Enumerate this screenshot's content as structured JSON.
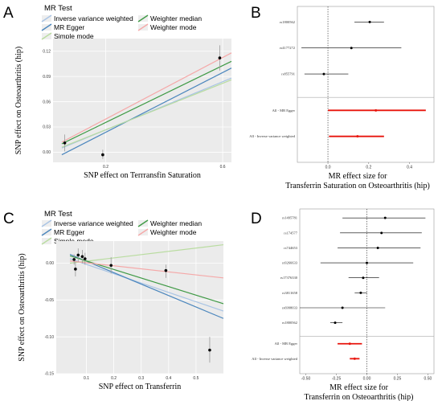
{
  "panels": {
    "A": "A",
    "B": "B",
    "C": "C",
    "D": "D"
  },
  "legend": {
    "title": "MR Test",
    "items": [
      {
        "label": "Inverse variance weighted",
        "color": "#a9c4e4"
      },
      {
        "label": "MR Egger",
        "color": "#4b86bd"
      },
      {
        "label": "Simple mode",
        "color": "#b9dca0"
      },
      {
        "label": "Weighter median",
        "color": "#3f9a45"
      },
      {
        "label": "Weighter mode",
        "color": "#f5a8a8"
      }
    ]
  },
  "chart_data": [
    {
      "id": "A",
      "type": "scatter",
      "xlabel": "SNP effect on Terrransfin Saturation",
      "ylabel": "SNP effect on Osteoarthritis (hip)",
      "xlim": [
        0.02,
        0.63
      ],
      "ylim": [
        -0.012,
        0.135
      ],
      "xticks": [
        {
          "v": 0.2,
          "t": "0.2"
        },
        {
          "v": 0.6,
          "t": "0.6"
        }
      ],
      "yticks": [
        {
          "v": 0.0,
          "t": "0.00"
        },
        {
          "v": 0.03,
          "t": "0.03"
        },
        {
          "v": 0.06,
          "t": "0.06"
        },
        {
          "v": 0.09,
          "t": "0.09"
        },
        {
          "v": 0.12,
          "t": "0.12"
        }
      ],
      "points": [
        {
          "x": 0.06,
          "y": 0.011,
          "lo": 0.001,
          "hi": 0.021
        },
        {
          "x": 0.19,
          "y": -0.003,
          "lo": -0.008,
          "hi": 0.003
        },
        {
          "x": 0.59,
          "y": 0.112,
          "lo": 0.097,
          "hi": 0.127
        }
      ],
      "lines": [
        {
          "name": "Inverse variance weighted",
          "x0": 0.05,
          "y0": 0.005,
          "x1": 0.63,
          "y1": 0.088
        },
        {
          "name": "MR Egger",
          "x0": 0.05,
          "y0": -0.003,
          "x1": 0.63,
          "y1": 0.1
        },
        {
          "name": "Simple mode",
          "x0": 0.05,
          "y0": 0.006,
          "x1": 0.63,
          "y1": 0.086
        },
        {
          "name": "Weighter median",
          "x0": 0.05,
          "y0": 0.01,
          "x1": 0.63,
          "y1": 0.108
        },
        {
          "name": "Weighter mode",
          "x0": 0.05,
          "y0": 0.012,
          "x1": 0.63,
          "y1": 0.118
        }
      ]
    },
    {
      "id": "B",
      "type": "forest",
      "xlabel": "MR effect size for\nTransferrin Saturation on Osteoarthritis (hip)",
      "xlim": [
        -0.15,
        0.52
      ],
      "xticks": [
        {
          "v": 0.0,
          "t": "0.0"
        },
        {
          "v": 0.2,
          "t": "0.2"
        },
        {
          "v": 0.4,
          "t": "0.4"
        }
      ],
      "snps": [
        {
          "label": "rs1800562",
          "est": 0.205,
          "lo": 0.13,
          "hi": 0.275
        },
        {
          "label": "rs4177272",
          "est": 0.115,
          "lo": -0.13,
          "hi": 0.36
        },
        {
          "label": "rs855791",
          "est": -0.02,
          "lo": -0.115,
          "hi": 0.1
        }
      ],
      "summary": [
        {
          "label": "All - MR Egger",
          "est": 0.235,
          "lo": 0.0,
          "hi": 0.48
        },
        {
          "label": "All - Inverse variance weighted",
          "est": 0.145,
          "lo": 0.005,
          "hi": 0.275
        }
      ]
    },
    {
      "id": "C",
      "type": "scatter",
      "xlabel": "SNP effect on Transferrin",
      "ylabel": "SNP effect on Osteoarthritis (hip)",
      "xlim": [
        -0.01,
        0.6
      ],
      "ylim": [
        -0.15,
        0.03
      ],
      "xticks": [
        {
          "v": 0.1,
          "t": "0.1"
        },
        {
          "v": 0.2,
          "t": "0.2"
        },
        {
          "v": 0.3,
          "t": "0.3"
        },
        {
          "v": 0.4,
          "t": "0.4"
        },
        {
          "v": 0.5,
          "t": "0.5"
        }
      ],
      "yticks": [
        {
          "v": 0.0,
          "t": "0.00"
        },
        {
          "v": -0.05,
          "t": "-0.05"
        },
        {
          "v": -0.1,
          "t": "-0.10"
        },
        {
          "v": -0.15,
          "t": "-0.15"
        }
      ],
      "points": [
        {
          "x": 0.055,
          "y": 0.005,
          "lo": -0.002,
          "hi": 0.012
        },
        {
          "x": 0.06,
          "y": -0.008,
          "lo": -0.018,
          "hi": 0.002
        },
        {
          "x": 0.07,
          "y": 0.011,
          "lo": 0.002,
          "hi": 0.02
        },
        {
          "x": 0.085,
          "y": 0.009,
          "lo": 0.0,
          "hi": 0.018
        },
        {
          "x": 0.095,
          "y": 0.006,
          "lo": -0.002,
          "hi": 0.014
        },
        {
          "x": 0.19,
          "y": -0.003,
          "lo": -0.014,
          "hi": 0.008
        },
        {
          "x": 0.39,
          "y": -0.01,
          "lo": -0.02,
          "hi": -0.002
        },
        {
          "x": 0.55,
          "y": -0.118,
          "lo": -0.135,
          "hi": -0.1
        }
      ],
      "lines": [
        {
          "name": "Inverse variance weighted",
          "x0": 0.04,
          "y0": 0.006,
          "x1": 0.6,
          "y1": -0.065
        },
        {
          "name": "MR Egger",
          "x0": 0.04,
          "y0": 0.012,
          "x1": 0.6,
          "y1": -0.075
        },
        {
          "name": "Simple mode",
          "x0": 0.04,
          "y0": 0.0,
          "x1": 0.6,
          "y1": 0.025
        },
        {
          "name": "Weighter median",
          "x0": 0.04,
          "y0": 0.01,
          "x1": 0.6,
          "y1": -0.055
        },
        {
          "name": "Weighter mode",
          "x0": 0.04,
          "y0": 0.003,
          "x1": 0.6,
          "y1": -0.02
        }
      ]
    },
    {
      "id": "D",
      "type": "forest",
      "xlabel": "MR effect size for\nTransferrin on Osteoarthritis (hip)",
      "xlim": [
        -0.55,
        0.55
      ],
      "xticks": [
        {
          "v": -0.5,
          "t": "-0.50"
        },
        {
          "v": -0.25,
          "t": "-0.25"
        },
        {
          "v": 0.0,
          "t": "0.00"
        },
        {
          "v": 0.25,
          "t": "0.25"
        },
        {
          "v": 0.5,
          "t": "0.50"
        }
      ],
      "snps": [
        {
          "label": "rs1495781",
          "est": 0.15,
          "lo": -0.2,
          "hi": 0.48
        },
        {
          "label": "rs174577",
          "est": 0.12,
          "lo": -0.22,
          "hi": 0.45
        },
        {
          "label": "rs744653",
          "est": 0.09,
          "lo": -0.24,
          "hi": 0.44
        },
        {
          "label": "rs9266633",
          "est": 0.0,
          "lo": -0.38,
          "hi": 0.38
        },
        {
          "label": "rs17376330",
          "est": -0.03,
          "lo": -0.15,
          "hi": 0.1
        },
        {
          "label": "rs3811658",
          "est": -0.05,
          "lo": -0.1,
          "hi": 0.0
        },
        {
          "label": "rs6998033",
          "est": -0.2,
          "lo": -0.55,
          "hi": 0.15
        },
        {
          "label": "rs1800562",
          "est": -0.26,
          "lo": -0.3,
          "hi": -0.2
        }
      ],
      "summary": [
        {
          "label": "All - MR Egger",
          "est": -0.14,
          "lo": -0.24,
          "hi": -0.04
        },
        {
          "label": "All - Inverse variance weighted",
          "est": -0.1,
          "lo": -0.14,
          "hi": -0.06
        }
      ]
    }
  ]
}
